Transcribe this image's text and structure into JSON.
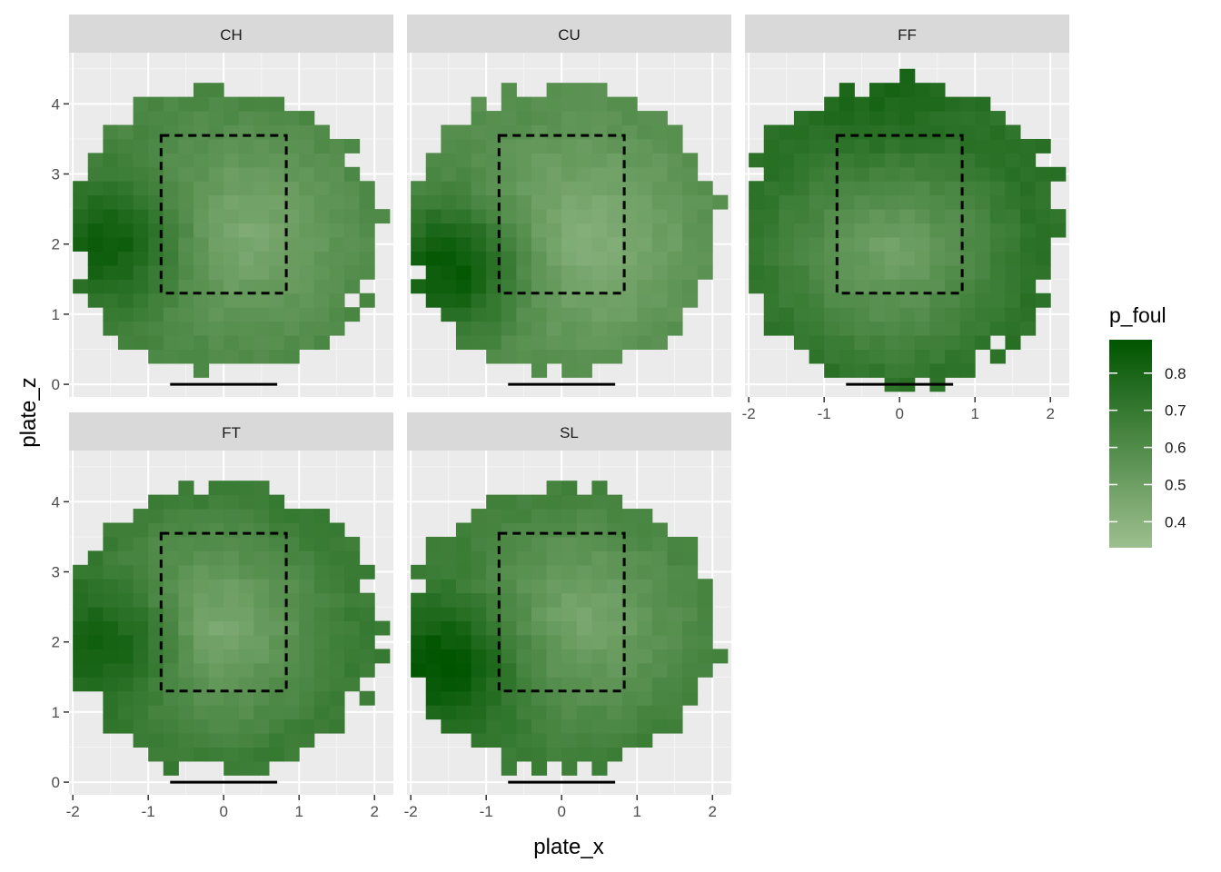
{
  "chart_data": {
    "type": "heatmap",
    "facet_labels": [
      "CH",
      "CU",
      "FF",
      "FT",
      "SL"
    ],
    "xlabel": "plate_x",
    "ylabel": "plate_z",
    "x_ticks": [
      -2,
      -1,
      0,
      1,
      2
    ],
    "y_ticks": [
      0,
      1,
      2,
      3,
      4
    ],
    "xlim": [
      -2.05,
      2.25
    ],
    "ylim": [
      -0.18,
      4.73
    ],
    "grid": true,
    "strike_zone": {
      "x": [
        -0.83,
        0.83
      ],
      "z": [
        1.3,
        3.55
      ],
      "line": "dashed"
    },
    "home_plate": {
      "x": [
        -0.71,
        0.71
      ],
      "z": 0
    },
    "legend": {
      "title": "p_foul",
      "position": "right",
      "ticks": [
        "0.4",
        "0.5",
        "0.6",
        "0.7",
        "0.8"
      ],
      "range": [
        0.33,
        0.89
      ],
      "low_color": "#9dbf8f",
      "high_color": "#005400"
    },
    "cell_size": {
      "x": 0.2,
      "z": 0.2
    },
    "facets": {
      "CH": {
        "center": [
          0.25,
          2.15
        ],
        "high_pos": [
          -1.55,
          2.0
        ],
        "high": 0.84,
        "min": 0.43,
        "edge": 0.62,
        "radius": 2.05,
        "rx": 2.05,
        "rz": 2.05
      },
      "CU": {
        "center": [
          0.25,
          2.05
        ],
        "high_pos": [
          -1.5,
          1.65
        ],
        "high": 0.87,
        "min": 0.4,
        "edge": 0.58,
        "radius": 2.05,
        "rx": 2.05,
        "rz": 2.05
      },
      "FF": {
        "center": [
          -0.1,
          1.9
        ],
        "high_pos": [
          -0.3,
          4.3
        ],
        "high": 0.8,
        "min": 0.47,
        "edge": 0.73,
        "radius": 2.15,
        "rx": 2.15,
        "rz": 2.15
      },
      "FT": {
        "center": [
          -0.2,
          2.2
        ],
        "high_pos": [
          -1.6,
          1.95
        ],
        "high": 0.82,
        "min": 0.42,
        "edge": 0.68,
        "radius": 2.05,
        "rx": 2.05,
        "rz": 2.05
      },
      "SL": {
        "center": [
          0.25,
          2.35
        ],
        "high_pos": [
          -1.6,
          1.65
        ],
        "high": 0.89,
        "min": 0.45,
        "edge": 0.66,
        "radius": 2.05,
        "rx": 2.05,
        "rz": 2.05
      }
    }
  }
}
